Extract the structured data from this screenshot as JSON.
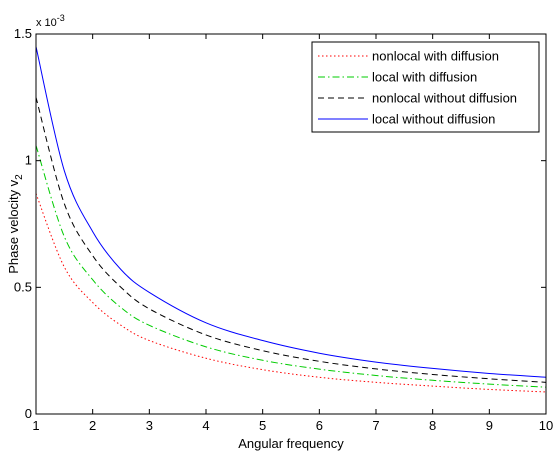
{
  "chart_data": {
    "type": "line",
    "title": "",
    "xlabel": "Angular frequency",
    "ylabel": "Phase velocity v",
    "ylabel_subscript": "2",
    "y_multiplier": "x 10",
    "y_multiplier_exponent": "-3",
    "xlim": [
      1,
      10
    ],
    "ylim": [
      0,
      1.5
    ],
    "x_ticks": [
      1,
      2,
      3,
      4,
      5,
      6,
      7,
      8,
      9,
      10
    ],
    "y_ticks": [
      0,
      0.5,
      1,
      1.5
    ],
    "x_tick_labels": [
      "1",
      "2",
      "3",
      "4",
      "5",
      "6",
      "7",
      "8",
      "9",
      "10"
    ],
    "y_tick_labels": [
      "0",
      "0.5",
      "1",
      "1.5"
    ],
    "grid": false,
    "legend_position": "top-right",
    "series": [
      {
        "name": "nonlocal with diffusion",
        "color": "#ff0000",
        "dash": "dotted",
        "x": [
          1,
          1.5,
          2,
          2.5,
          3,
          4,
          5,
          6,
          7,
          8,
          9,
          10
        ],
        "y": [
          0.87,
          0.58,
          0.44,
          0.35,
          0.29,
          0.22,
          0.175,
          0.145,
          0.125,
          0.11,
          0.097,
          0.087
        ]
      },
      {
        "name": "local with diffusion",
        "color": "#00cc00",
        "dash": "dashdot",
        "x": [
          1,
          1.5,
          2,
          2.5,
          3,
          4,
          5,
          6,
          7,
          8,
          9,
          10
        ],
        "y": [
          1.06,
          0.7,
          0.53,
          0.42,
          0.35,
          0.265,
          0.212,
          0.177,
          0.152,
          0.133,
          0.118,
          0.106
        ]
      },
      {
        "name": "nonlocal without diffusion",
        "color": "#000000",
        "dash": "dashed",
        "x": [
          1,
          1.5,
          2,
          2.5,
          3,
          4,
          5,
          6,
          7,
          8,
          9,
          10
        ],
        "y": [
          1.25,
          0.83,
          0.625,
          0.5,
          0.415,
          0.312,
          0.25,
          0.208,
          0.178,
          0.156,
          0.139,
          0.125
        ]
      },
      {
        "name": "local without diffusion",
        "color": "#0000ff",
        "dash": "solid",
        "x": [
          1,
          1.5,
          2,
          2.5,
          3,
          4,
          5,
          6,
          7,
          8,
          9,
          10
        ],
        "y": [
          1.45,
          0.96,
          0.72,
          0.57,
          0.48,
          0.36,
          0.29,
          0.24,
          0.205,
          0.18,
          0.16,
          0.145
        ]
      }
    ]
  }
}
